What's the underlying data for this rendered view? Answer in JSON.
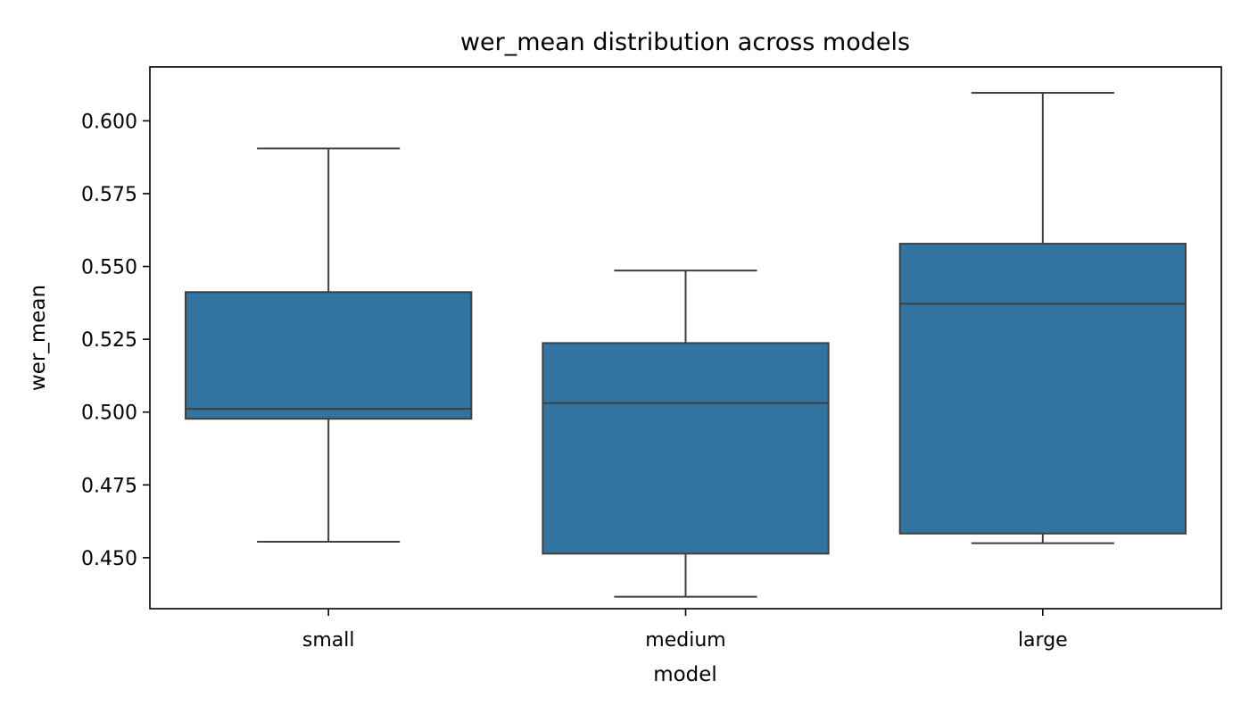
{
  "chart_data": {
    "type": "box",
    "title": "wer_mean distribution across models",
    "xlabel": "model",
    "ylabel": "wer_mean",
    "ylim": [
      0.4325,
      0.6185
    ],
    "yticks": [
      0.45,
      0.475,
      0.5,
      0.525,
      0.55,
      0.575,
      0.6
    ],
    "ytick_labels": [
      "0.450",
      "0.475",
      "0.500",
      "0.525",
      "0.550",
      "0.575",
      "0.600"
    ],
    "categories": [
      "small",
      "medium",
      "large"
    ],
    "grid": false,
    "legend": "none",
    "colors": {
      "box_fill": "#3274a1",
      "box_edge": "#3f3f3f",
      "axes": "#000000"
    },
    "boxes": [
      {
        "category": "small",
        "whisker_low": 0.4555,
        "q1": 0.4977,
        "median": 0.5011,
        "q3": 0.5412,
        "whisker_high": 0.5905
      },
      {
        "category": "medium",
        "whisker_low": 0.4366,
        "q1": 0.4514,
        "median": 0.5031,
        "q3": 0.5237,
        "whisker_high": 0.5486
      },
      {
        "category": "large",
        "whisker_low": 0.455,
        "q1": 0.4583,
        "median": 0.5372,
        "q3": 0.5578,
        "whisker_high": 0.6096
      }
    ]
  }
}
